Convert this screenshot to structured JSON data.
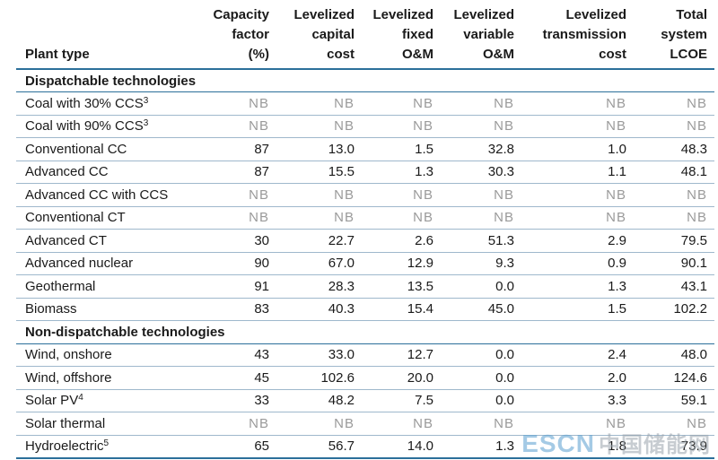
{
  "header": {
    "plant_type": "Plant type",
    "capacity": [
      "Capacity",
      "factor",
      "(%)"
    ],
    "capital": [
      "Levelized",
      "capital",
      "cost"
    ],
    "fixed": [
      "Levelized",
      "fixed",
      "O&M"
    ],
    "variable": [
      "Levelized",
      "variable",
      "O&M"
    ],
    "transmission": [
      "Levelized",
      "transmission",
      "cost"
    ],
    "total": [
      "Total",
      "system",
      "LCOE"
    ]
  },
  "sections": {
    "dispatchable": "Dispatchable technologies",
    "non_dispatchable": "Non-dispatchable technologies"
  },
  "rows": [
    {
      "name": "Coal with 30% CCS",
      "sup": "3",
      "values": [
        "NB",
        "NB",
        "NB",
        "NB",
        "NB",
        "NB"
      ]
    },
    {
      "name": "Coal with 90% CCS",
      "sup": "3",
      "values": [
        "NB",
        "NB",
        "NB",
        "NB",
        "NB",
        "NB"
      ]
    },
    {
      "name": "Conventional CC",
      "sup": "",
      "values": [
        "87",
        "13.0",
        "1.5",
        "32.8",
        "1.0",
        "48.3"
      ]
    },
    {
      "name": "Advanced CC",
      "sup": "",
      "values": [
        "87",
        "15.5",
        "1.3",
        "30.3",
        "1.1",
        "48.1"
      ]
    },
    {
      "name": "Advanced CC with CCS",
      "sup": "",
      "values": [
        "NB",
        "NB",
        "NB",
        "NB",
        "NB",
        "NB"
      ]
    },
    {
      "name": "Conventional CT",
      "sup": "",
      "values": [
        "NB",
        "NB",
        "NB",
        "NB",
        "NB",
        "NB"
      ]
    },
    {
      "name": "Advanced CT",
      "sup": "",
      "values": [
        "30",
        "22.7",
        "2.6",
        "51.3",
        "2.9",
        "79.5"
      ]
    },
    {
      "name": "Advanced nuclear",
      "sup": "",
      "values": [
        "90",
        "67.0",
        "12.9",
        "9.3",
        "0.9",
        "90.1"
      ]
    },
    {
      "name": "Geothermal",
      "sup": "",
      "values": [
        "91",
        "28.3",
        "13.5",
        "0.0",
        "1.3",
        "43.1"
      ]
    },
    {
      "name": "Biomass",
      "sup": "",
      "values": [
        "83",
        "40.3",
        "15.4",
        "45.0",
        "1.5",
        "102.2"
      ]
    },
    {
      "name": "Wind, onshore",
      "sup": "",
      "values": [
        "43",
        "33.0",
        "12.7",
        "0.0",
        "2.4",
        "48.0"
      ]
    },
    {
      "name": "Wind, offshore",
      "sup": "",
      "values": [
        "45",
        "102.6",
        "20.0",
        "0.0",
        "2.0",
        "124.6"
      ]
    },
    {
      "name": "Solar PV",
      "sup": "4",
      "values": [
        "33",
        "48.2",
        "7.5",
        "0.0",
        "3.3",
        "59.1"
      ]
    },
    {
      "name": "Solar thermal",
      "sup": "",
      "values": [
        "NB",
        "NB",
        "NB",
        "NB",
        "NB",
        "NB"
      ]
    },
    {
      "name": "Hydroelectric",
      "sup": "5",
      "values": [
        "65",
        "56.7",
        "14.0",
        "1.3",
        "1.8",
        "73.9"
      ]
    }
  ],
  "watermark": {
    "brand": "ESCN",
    "cn": "中国储能网"
  }
}
